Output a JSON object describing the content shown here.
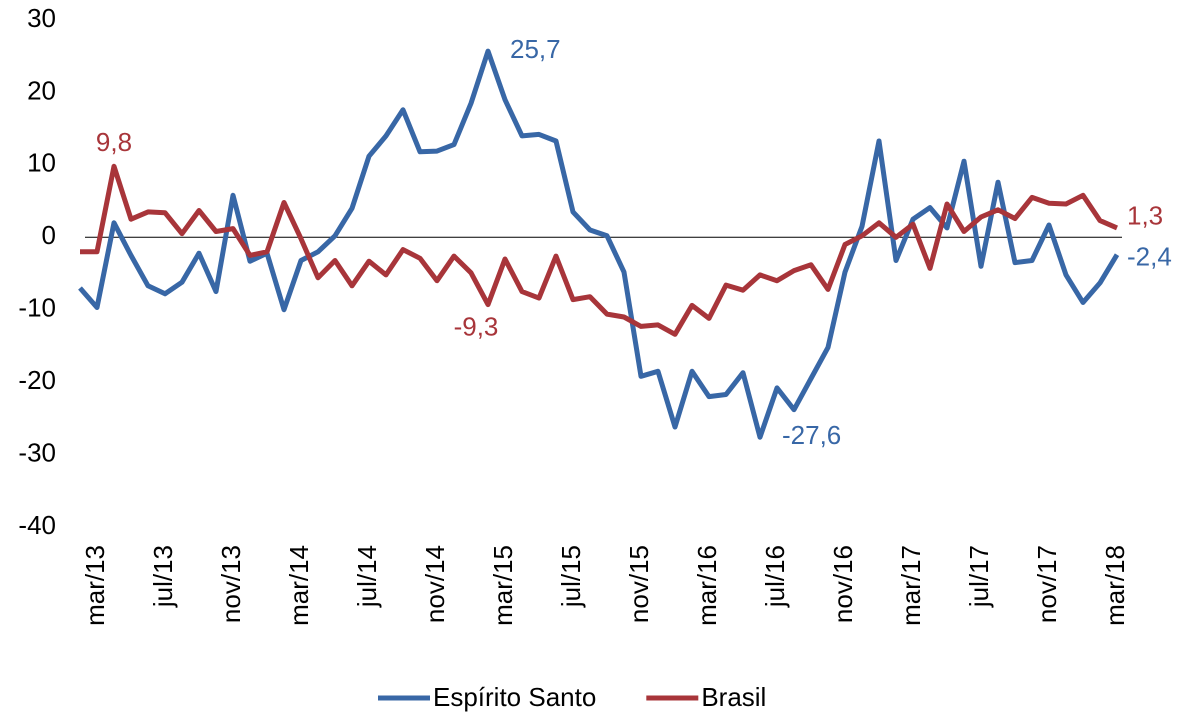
{
  "chart_data": {
    "type": "line",
    "categories": [
      null,
      "mar/13",
      null,
      null,
      null,
      "jul/13",
      null,
      null,
      null,
      "nov/13",
      null,
      null,
      null,
      "mar/14",
      null,
      null,
      null,
      "jul/14",
      null,
      null,
      null,
      "nov/14",
      null,
      null,
      null,
      "mar/15",
      null,
      null,
      null,
      "jul/15",
      null,
      null,
      null,
      "nov/15",
      null,
      null,
      null,
      "mar/16",
      null,
      null,
      null,
      "jul/16",
      null,
      null,
      null,
      "nov/16",
      null,
      null,
      null,
      "mar/17",
      null,
      null,
      null,
      "jul/17",
      null,
      null,
      null,
      "nov/17",
      null,
      null,
      null,
      "mar/18"
    ],
    "series": [
      {
        "name": "Espírito Santo",
        "color": "#3867a6",
        "values": [
          -7,
          -9.7,
          2,
          -2.5,
          -6.7,
          -7.8,
          -6.2,
          -2.2,
          -7.5,
          5.8,
          -3.3,
          -2.2,
          -10,
          -3.2,
          -2,
          0.2,
          4,
          11.2,
          14,
          17.6,
          11.8,
          11.9,
          12.8,
          18.5,
          25.7,
          19,
          14,
          14.2,
          13.3,
          3.5,
          1,
          0.2,
          -4.8,
          -19.2,
          -18.5,
          -26.2,
          -18.5,
          -22,
          -21.7,
          -18.7,
          -27.6,
          -20.8,
          -23.8,
          -19.5,
          -15.2,
          -4.8,
          1.5,
          13.3,
          -3.2,
          2.5,
          4.1,
          1.3,
          10.5,
          -4,
          7.6,
          -3.5,
          -3.2,
          1.7,
          -5.2,
          -9,
          -6.3,
          -2.4
        ],
        "value_labels": [
          null,
          null,
          null,
          null,
          null,
          null,
          null,
          null,
          null,
          null,
          null,
          null,
          null,
          null,
          null,
          null,
          null,
          null,
          null,
          null,
          null,
          null,
          null,
          null,
          "25,7",
          null,
          null,
          null,
          null,
          null,
          null,
          null,
          null,
          null,
          null,
          null,
          null,
          null,
          null,
          null,
          "-27,6",
          null,
          null,
          null,
          null,
          null,
          null,
          null,
          null,
          null,
          null,
          null,
          null,
          null,
          null,
          null,
          null,
          null,
          null,
          null,
          null,
          "-2,4"
        ]
      },
      {
        "name": "Brasil",
        "color": "#a8353a",
        "values": [
          -2,
          -2,
          9.8,
          2.5,
          3.5,
          3.4,
          0.5,
          3.7,
          0.8,
          1.2,
          -2.5,
          -2,
          4.8,
          -0.2,
          -5.6,
          -3.2,
          -6.7,
          -3.3,
          -5.2,
          -1.7,
          -2.9,
          -6,
          -2.6,
          -4.9,
          -9.3,
          -3,
          -7.5,
          -8.4,
          -2.6,
          -8.6,
          -8.2,
          -10.6,
          -11,
          -12.3,
          -12.1,
          -13.4,
          -9.4,
          -11.2,
          -6.6,
          -7.3,
          -5.2,
          -6,
          -4.6,
          -3.8,
          -7.2,
          -1,
          0.2,
          2,
          0,
          1.8,
          -4.3,
          4.6,
          0.8,
          2.8,
          3.8,
          2.6,
          5.5,
          4.7,
          4.6,
          5.8,
          2.3,
          1.3
        ],
        "value_labels": [
          null,
          null,
          "9,8",
          null,
          null,
          null,
          null,
          null,
          null,
          null,
          null,
          null,
          null,
          null,
          null,
          null,
          null,
          null,
          null,
          null,
          null,
          null,
          null,
          null,
          "-9,3",
          null,
          null,
          null,
          null,
          null,
          null,
          null,
          null,
          null,
          null,
          null,
          null,
          null,
          null,
          null,
          null,
          null,
          null,
          null,
          null,
          null,
          null,
          null,
          null,
          null,
          null,
          null,
          null,
          null,
          null,
          null,
          null,
          null,
          null,
          null,
          null,
          "1,3"
        ]
      }
    ],
    "ylim": [
      -40,
      30
    ],
    "yticks": [
      -40,
      -30,
      -20,
      -10,
      0,
      10,
      20,
      30
    ],
    "zero_line": true,
    "grid": false,
    "legend": "bottom"
  }
}
